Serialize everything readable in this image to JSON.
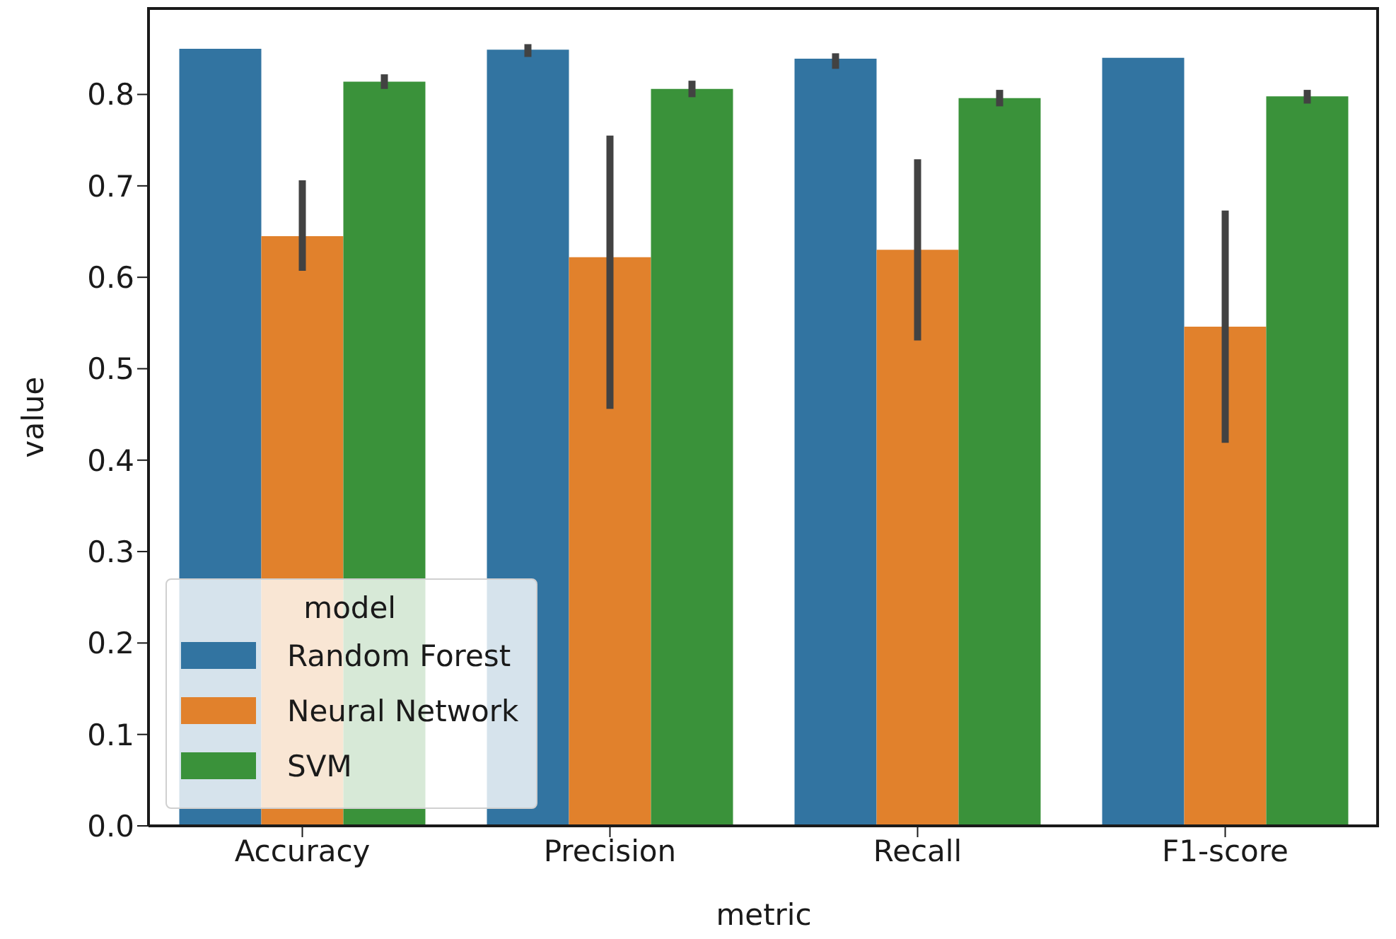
{
  "chart_data": {
    "type": "bar",
    "xlabel": "metric",
    "ylabel": "value",
    "legend_title": "model",
    "legend": "bottom left",
    "categories": [
      "Accuracy",
      "Precision",
      "Recall",
      "F1-score"
    ],
    "ylim": [
      0,
      0.894
    ],
    "yticks": [
      {
        "value": 0,
        "label": "0.0"
      },
      0.1,
      0.2,
      0.3,
      0.4,
      0.5,
      0.6,
      0.7,
      0.8
    ],
    "grid": false,
    "series": [
      {
        "name": "Random Forest",
        "color": "#3274a1",
        "values": [
          0.85,
          0.849,
          0.839,
          0.84
        ],
        "errors": [
          null,
          [
            0.841,
            0.855
          ],
          [
            0.828,
            0.845
          ],
          null
        ]
      },
      {
        "name": "Neural Network",
        "color": "#e1812c",
        "values": [
          0.645,
          0.622,
          0.63,
          0.546
        ],
        "errors": [
          [
            0.607,
            0.706
          ],
          [
            0.456,
            0.755
          ],
          [
            0.531,
            0.729
          ],
          [
            0.419,
            0.673
          ]
        ]
      },
      {
        "name": "SVM",
        "color": "#3a923a",
        "values": [
          0.814,
          0.806,
          0.796,
          0.798
        ],
        "errors": [
          [
            0.806,
            0.822
          ],
          [
            0.797,
            0.815
          ],
          [
            0.787,
            0.805
          ],
          [
            0.79,
            0.805
          ]
        ]
      }
    ]
  }
}
